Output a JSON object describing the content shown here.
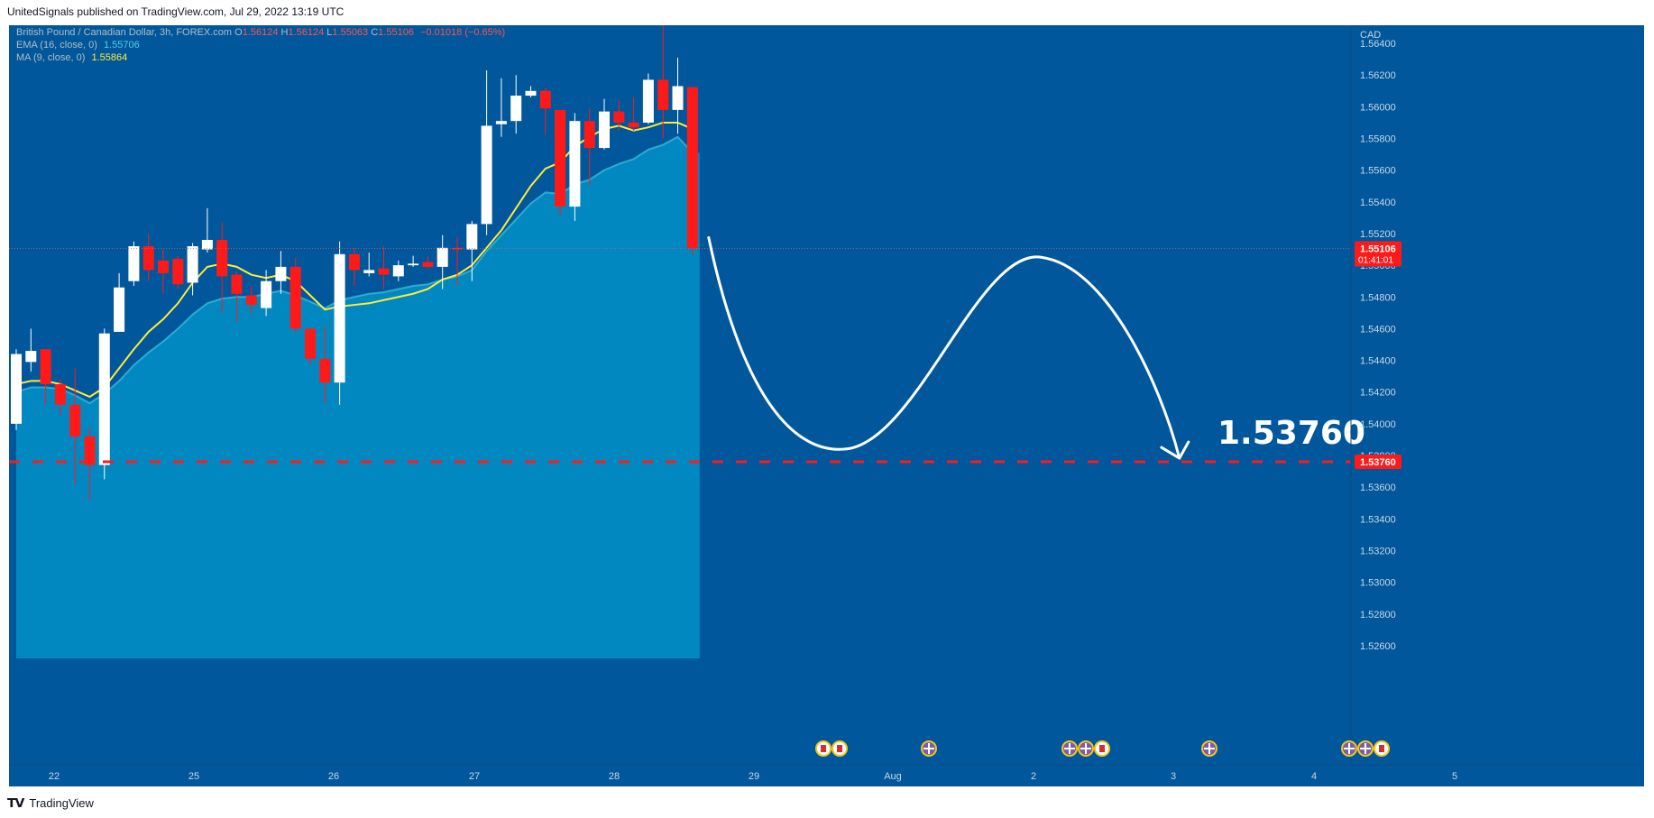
{
  "header": {
    "published": "UnitedSignals published on TradingView.com, Jul 29, 2022 13:19 UTC"
  },
  "legend": {
    "symbol": "British Pound / Canadian Dollar, 3h, FOREX.com",
    "ohlc": [
      {
        "label": "O",
        "value": "1.56124"
      },
      {
        "label": "H",
        "value": "1.56124"
      },
      {
        "label": "L",
        "value": "1.55063"
      },
      {
        "label": "C",
        "value": "1.55106"
      }
    ],
    "change": "−0.01018 (−0.65%)",
    "ema": {
      "label": "EMA (16, close, 0)",
      "value": "1.55706"
    },
    "ma": {
      "label": "MA (9, close, 0)",
      "value": "1.55864"
    }
  },
  "colors": {
    "background": "#01579b",
    "area": "#0288c1",
    "up": "#ffffff",
    "down": "#ff1a1a",
    "ema": "#4dd0e1",
    "ma": "#ffeb3b",
    "target": "#ff1a1a",
    "arrow": "#ffffff"
  },
  "price_axis": {
    "currency": "CAD",
    "ticks": [
      "1.56400",
      "1.56200",
      "1.56000",
      "1.55800",
      "1.55600",
      "1.55400",
      "1.55200",
      "1.55000",
      "1.54800",
      "1.54600",
      "1.54400",
      "1.54200",
      "1.54000",
      "1.53800",
      "1.53600",
      "1.53400",
      "1.53200",
      "1.53000",
      "1.52800",
      "1.52600"
    ],
    "current_price": "1.55106",
    "countdown": "01:41:01",
    "target_label": "1.53760"
  },
  "time_axis": {
    "labels": [
      "22",
      "25",
      "26",
      "27",
      "28",
      "29",
      "Aug",
      "2",
      "3",
      "4",
      "5"
    ]
  },
  "annotation": {
    "target_text": "1.53760"
  },
  "events": [
    {
      "icons": [
        "ca-flag-icon",
        "ca-flag-icon"
      ]
    },
    {
      "icons": [
        "uk-flag-icon"
      ]
    },
    {
      "icons": [
        "uk-flag-icon",
        "uk-flag-icon",
        "ca-flag-icon"
      ]
    },
    {
      "icons": [
        "uk-flag-icon"
      ]
    },
    {
      "icons": [
        "uk-flag-icon",
        "uk-flag-icon",
        "ca-flag-icon"
      ]
    }
  ],
  "footer": {
    "brand": "TradingView"
  },
  "chart_data": {
    "type": "candlestick",
    "title": "British Pound / Canadian Dollar, 3h, FOREX.com",
    "ylim": [
      1.5252,
      1.5648
    ],
    "target_level": 1.5376,
    "last_price": 1.55106,
    "x_labels": [
      "22",
      "25",
      "26",
      "27",
      "28",
      "29",
      "Aug",
      "2",
      "3",
      "4",
      "5"
    ],
    "candles": [
      {
        "o": 1.54,
        "h": 1.5447,
        "l": 1.5396,
        "c": 1.5444
      },
      {
        "o": 1.5439,
        "h": 1.546,
        "l": 1.5433,
        "c": 1.5446
      },
      {
        "o": 1.5447,
        "h": 1.5447,
        "l": 1.5412,
        "c": 1.5425
      },
      {
        "o": 1.5425,
        "h": 1.5428,
        "l": 1.5405,
        "c": 1.5412
      },
      {
        "o": 1.5412,
        "h": 1.5435,
        "l": 1.5362,
        "c": 1.5392
      },
      {
        "o": 1.5392,
        "h": 1.5398,
        "l": 1.5352,
        "c": 1.5374
      },
      {
        "o": 1.5374,
        "h": 1.546,
        "l": 1.5365,
        "c": 1.5457
      },
      {
        "o": 1.5458,
        "h": 1.5495,
        "l": 1.5458,
        "c": 1.5486
      },
      {
        "o": 1.549,
        "h": 1.5515,
        "l": 1.5487,
        "c": 1.5512
      },
      {
        "o": 1.5512,
        "h": 1.552,
        "l": 1.549,
        "c": 1.5497
      },
      {
        "o": 1.5503,
        "h": 1.551,
        "l": 1.5482,
        "c": 1.5495
      },
      {
        "o": 1.5504,
        "h": 1.5506,
        "l": 1.5485,
        "c": 1.5488
      },
      {
        "o": 1.5489,
        "h": 1.5514,
        "l": 1.5481,
        "c": 1.5512
      },
      {
        "o": 1.551,
        "h": 1.5536,
        "l": 1.5508,
        "c": 1.5516
      },
      {
        "o": 1.5516,
        "h": 1.5527,
        "l": 1.547,
        "c": 1.5493
      },
      {
        "o": 1.5494,
        "h": 1.5496,
        "l": 1.5464,
        "c": 1.5482
      },
      {
        "o": 1.5481,
        "h": 1.5487,
        "l": 1.5469,
        "c": 1.5475
      },
      {
        "o": 1.5473,
        "h": 1.5497,
        "l": 1.5468,
        "c": 1.549
      },
      {
        "o": 1.549,
        "h": 1.5509,
        "l": 1.5482,
        "c": 1.5499
      },
      {
        "o": 1.5499,
        "h": 1.5505,
        "l": 1.5458,
        "c": 1.546
      },
      {
        "o": 1.546,
        "h": 1.546,
        "l": 1.5437,
        "c": 1.5441
      },
      {
        "o": 1.5441,
        "h": 1.5462,
        "l": 1.5413,
        "c": 1.5426
      },
      {
        "o": 1.5426,
        "h": 1.5515,
        "l": 1.5412,
        "c": 1.5507
      },
      {
        "o": 1.5507,
        "h": 1.5511,
        "l": 1.5487,
        "c": 1.5497
      },
      {
        "o": 1.5495,
        "h": 1.5508,
        "l": 1.5493,
        "c": 1.5497
      },
      {
        "o": 1.5498,
        "h": 1.5512,
        "l": 1.5485,
        "c": 1.5494
      },
      {
        "o": 1.5493,
        "h": 1.5503,
        "l": 1.549,
        "c": 1.55
      },
      {
        "o": 1.55,
        "h": 1.5506,
        "l": 1.5499,
        "c": 1.5501
      },
      {
        "o": 1.5502,
        "h": 1.5506,
        "l": 1.5498,
        "c": 1.5499
      },
      {
        "o": 1.5499,
        "h": 1.5519,
        "l": 1.5485,
        "c": 1.5511
      },
      {
        "o": 1.5511,
        "h": 1.5518,
        "l": 1.5487,
        "c": 1.551
      },
      {
        "o": 1.551,
        "h": 1.5528,
        "l": 1.549,
        "c": 1.5526
      },
      {
        "o": 1.5526,
        "h": 1.5623,
        "l": 1.5519,
        "c": 1.5588
      },
      {
        "o": 1.5589,
        "h": 1.5618,
        "l": 1.5581,
        "c": 1.5591
      },
      {
        "o": 1.5591,
        "h": 1.562,
        "l": 1.5583,
        "c": 1.5607
      },
      {
        "o": 1.5607,
        "h": 1.5613,
        "l": 1.5606,
        "c": 1.561
      },
      {
        "o": 1.561,
        "h": 1.5612,
        "l": 1.5582,
        "c": 1.5599
      },
      {
        "o": 1.5598,
        "h": 1.5598,
        "l": 1.5531,
        "c": 1.5537
      },
      {
        "o": 1.5537,
        "h": 1.5596,
        "l": 1.5528,
        "c": 1.5591
      },
      {
        "o": 1.5591,
        "h": 1.5599,
        "l": 1.555,
        "c": 1.5574
      },
      {
        "o": 1.5574,
        "h": 1.5605,
        "l": 1.5573,
        "c": 1.5597
      },
      {
        "o": 1.5597,
        "h": 1.5604,
        "l": 1.5585,
        "c": 1.559
      },
      {
        "o": 1.559,
        "h": 1.5606,
        "l": 1.5585,
        "c": 1.5587
      },
      {
        "o": 1.559,
        "h": 1.5621,
        "l": 1.5589,
        "c": 1.5617
      },
      {
        "o": 1.5617,
        "h": 1.5655,
        "l": 1.558,
        "c": 1.5598
      },
      {
        "o": 1.5598,
        "h": 1.5631,
        "l": 1.5583,
        "c": 1.5613
      },
      {
        "o": 1.56124,
        "h": 1.56124,
        "l": 1.55063,
        "c": 1.55106
      }
    ],
    "series": [
      {
        "name": "EMA (16, close, 0)",
        "values": [
          1.542,
          1.5423,
          1.5423,
          1.5422,
          1.5418,
          1.5413,
          1.5419,
          1.5427,
          1.5437,
          1.5445,
          1.5452,
          1.546,
          1.5469,
          1.5476,
          1.5479,
          1.548,
          1.548,
          1.5482,
          1.5484,
          1.5481,
          1.5477,
          1.5473,
          1.5478,
          1.548,
          1.5482,
          1.5483,
          1.5485,
          1.5487,
          1.5488,
          1.5491,
          1.5493,
          1.5497,
          1.5509,
          1.5519,
          1.5529,
          1.5539,
          1.5546,
          1.5545,
          1.5551,
          1.5554,
          1.556,
          1.5564,
          1.5567,
          1.5573,
          1.5576,
          1.5581,
          1.5571
        ]
      },
      {
        "name": "MA (9, close, 0)",
        "values": [
          1.5425,
          1.5427,
          1.5427,
          1.5425,
          1.5421,
          1.5417,
          1.5423,
          1.5435,
          1.5447,
          1.5458,
          1.5466,
          1.5476,
          1.5489,
          1.5499,
          1.5501,
          1.5499,
          1.5494,
          1.5492,
          1.5494,
          1.549,
          1.5481,
          1.5472,
          1.5474,
          1.5475,
          1.5476,
          1.5478,
          1.548,
          1.5482,
          1.5485,
          1.5491,
          1.5494,
          1.55,
          1.5511,
          1.5522,
          1.5536,
          1.555,
          1.5561,
          1.5565,
          1.5575,
          1.5581,
          1.5586,
          1.5588,
          1.5585,
          1.5587,
          1.559,
          1.559,
          1.5586
        ]
      }
    ]
  }
}
